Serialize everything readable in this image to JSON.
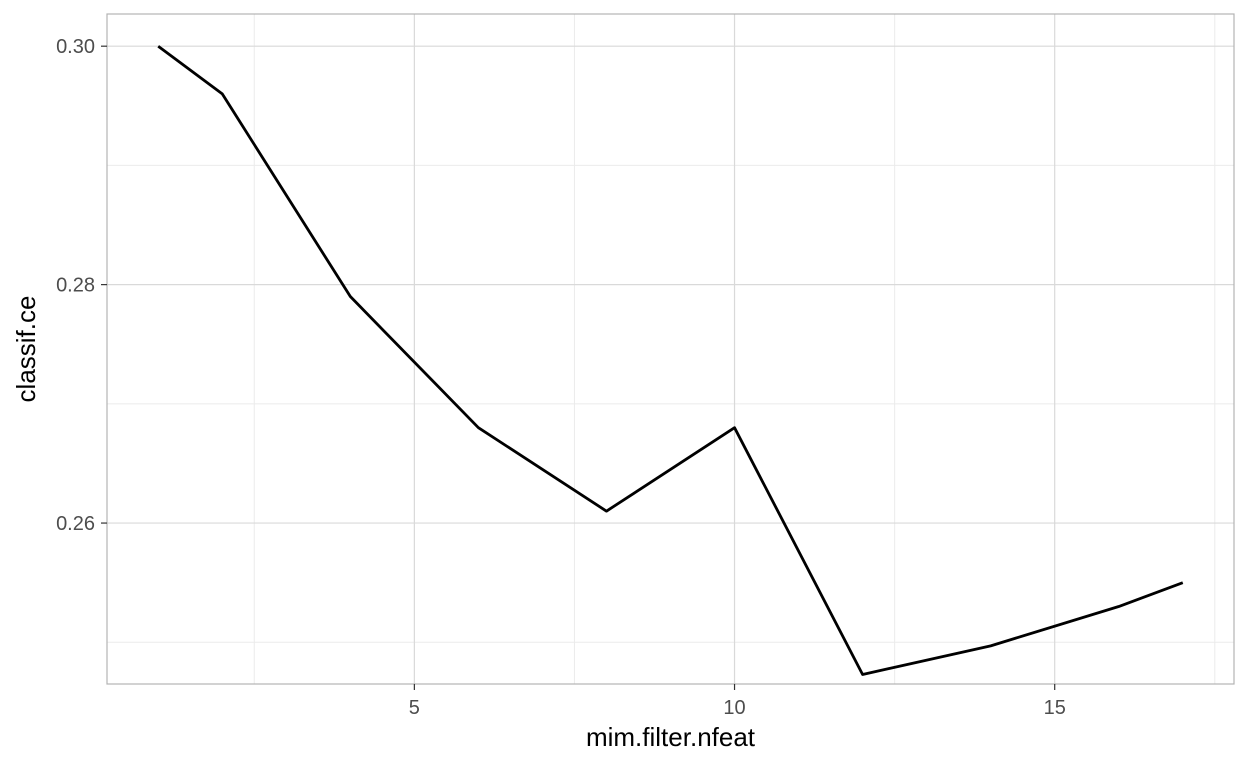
{
  "chart_data": {
    "type": "line",
    "title": "",
    "xlabel": "mim.filter.nfeat",
    "ylabel": "classif.ce",
    "xlim": [
      0.2,
      17.8
    ],
    "ylim": [
      0.2465,
      0.3027
    ],
    "x_ticks": [
      5,
      10,
      15
    ],
    "x_tick_labels": [
      "5",
      "10",
      "15"
    ],
    "x_minor_ticks": [
      2.5,
      7.5,
      12.5,
      17.5
    ],
    "y_ticks": [
      0.26,
      0.28,
      0.3
    ],
    "y_tick_labels": [
      "0.26",
      "0.28",
      "0.30"
    ],
    "y_minor_ticks": [
      0.25,
      0.27,
      0.29
    ],
    "grid": true,
    "legend": "none",
    "series": [
      {
        "color": "#000000",
        "x": [
          1,
          2,
          4,
          6,
          8,
          10,
          12,
          14,
          16,
          17
        ],
        "y": [
          0.3,
          0.296,
          0.279,
          0.268,
          0.261,
          0.268,
          0.2473,
          0.2497,
          0.253,
          0.255
        ]
      }
    ],
    "colors": {
      "panel_border": "#b3b3b3",
      "grid_major": "#d9d9d9",
      "grid_minor": "#ebebeb"
    }
  }
}
